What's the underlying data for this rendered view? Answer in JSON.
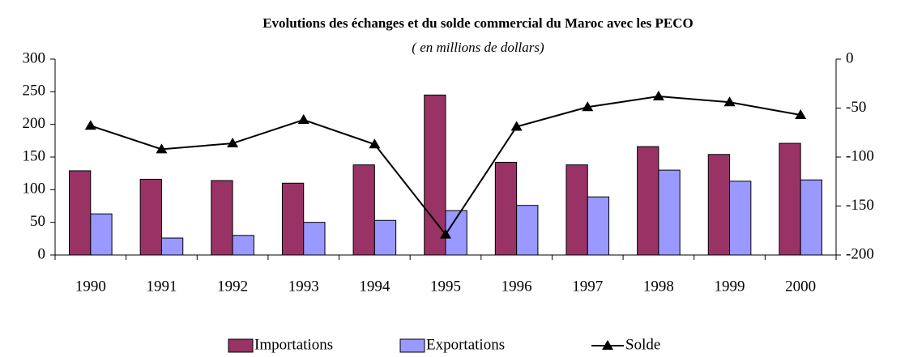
{
  "chart_data": {
    "type": "bar_line",
    "title": "Evolutions des échanges et du solde commercial  du Maroc avec les PECO",
    "subtitle": "( en millions de dollars)",
    "categories": [
      "1990",
      "1991",
      "1992",
      "1993",
      "1994",
      "1995",
      "1996",
      "1997",
      "1998",
      "1999",
      "2000"
    ],
    "series": [
      {
        "name": "Importations",
        "color": "#993366",
        "type": "bar",
        "values": [
          129,
          116,
          114,
          110,
          138,
          245,
          142,
          138,
          166,
          154,
          171
        ]
      },
      {
        "name": "Exportations",
        "color": "#9999ff",
        "type": "bar",
        "values": [
          63,
          26,
          30,
          50,
          53,
          68,
          76,
          89,
          130,
          113,
          115
        ]
      },
      {
        "name": "Solde",
        "color": "#000000",
        "type": "line",
        "axis": "y2",
        "values": [
          -68,
          -92,
          -86,
          -62,
          -87,
          -179,
          -69,
          -49,
          -38,
          -44,
          -57
        ]
      }
    ],
    "ylim": [
      0,
      300
    ],
    "yticks": [
      0,
      50,
      100,
      150,
      200,
      250,
      300
    ],
    "y2lim": [
      -200,
      0
    ],
    "y2ticks": [
      -200,
      -150,
      -100,
      -50,
      0
    ],
    "legend": "bottom"
  }
}
